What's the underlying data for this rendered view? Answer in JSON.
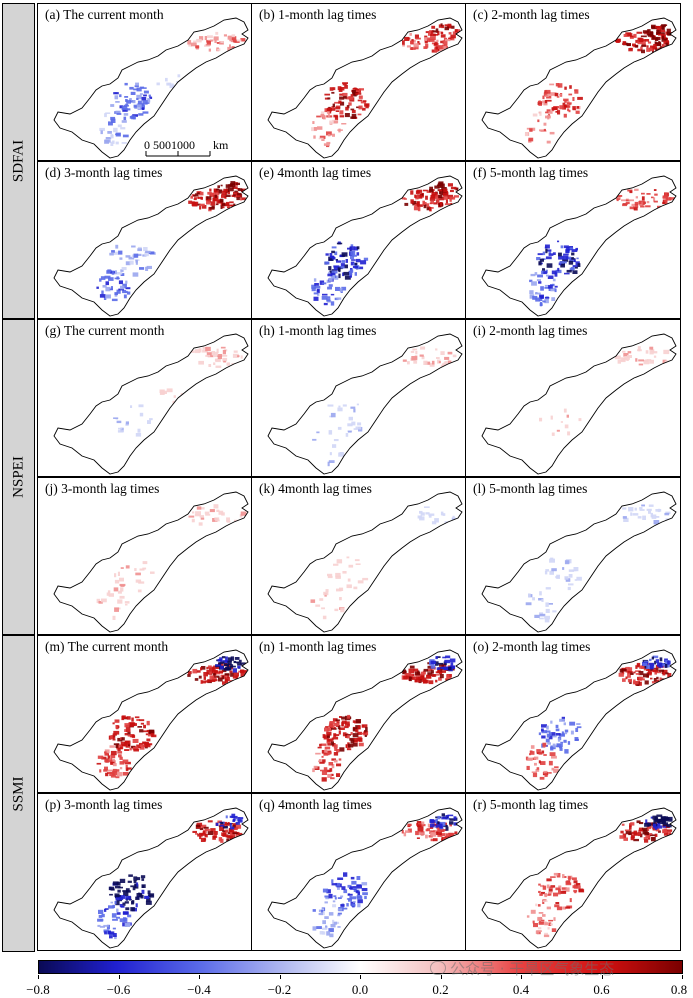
{
  "groups": [
    "SDFAI",
    "NSPEI",
    "SSMI"
  ],
  "panels": [
    {
      "label": "(a) The current month",
      "pattern": "a"
    },
    {
      "label": "(b) 1-month lag times",
      "pattern": "b"
    },
    {
      "label": "(c) 2-month lag times",
      "pattern": "c"
    },
    {
      "label": "(d) 3-month lag times",
      "pattern": "d"
    },
    {
      "label": "(e) 4month lag times",
      "pattern": "e"
    },
    {
      "label": "(f) 5-month lag times",
      "pattern": "f"
    },
    {
      "label": "(g) The current month",
      "pattern": "g"
    },
    {
      "label": "(h) 1-month lag times",
      "pattern": "h"
    },
    {
      "label": "(i) 2-month lag times",
      "pattern": "i"
    },
    {
      "label": "(j) 3-month lag times",
      "pattern": "j"
    },
    {
      "label": "(k) 4month lag times",
      "pattern": "k"
    },
    {
      "label": "(l) 5-month lag times",
      "pattern": "l"
    },
    {
      "label": "(m) The current month",
      "pattern": "m"
    },
    {
      "label": "(n) 1-month lag times",
      "pattern": "n"
    },
    {
      "label": "(o) 2-month lag times",
      "pattern": "o"
    },
    {
      "label": "(p) 3-month lag times",
      "pattern": "p"
    },
    {
      "label": "(q) 4month lag times",
      "pattern": "q"
    },
    {
      "label": "(r) 5-month lag times",
      "pattern": "r"
    }
  ],
  "scale_bar": {
    "ticks": "0   5001000",
    "unit": "km"
  },
  "colorbar": {
    "ticks": [
      "−0.8",
      "−0.6",
      "−0.4",
      "−0.2",
      "0.0",
      "0.2",
      "0.4",
      "0.6",
      "0.8"
    ],
    "colors": {
      "min": "#0a0a55",
      "mid": "#ffffff",
      "max": "#7a0000"
    }
  },
  "watermark": "公众号 · 干旱区气象生态"
}
